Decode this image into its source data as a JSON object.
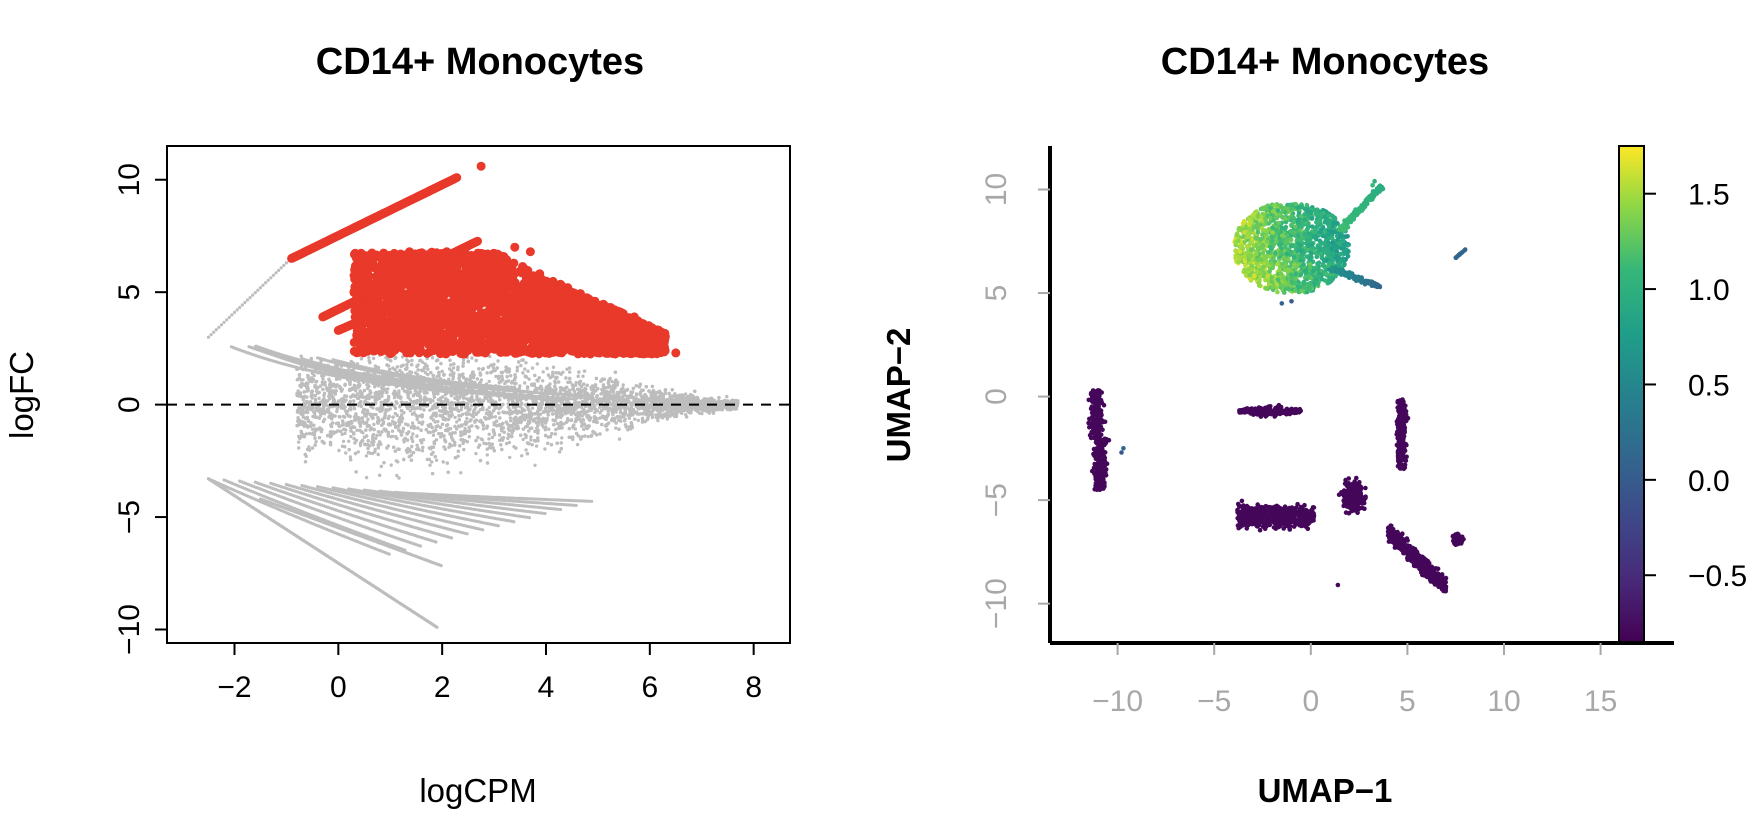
{
  "chart_data": [
    {
      "type": "scatter",
      "subtype": "MA plot",
      "title": "CD14+ Monocytes",
      "xlabel": "logCPM",
      "ylabel": "logFC",
      "xlim": [
        -3.3,
        8.7
      ],
      "ylim": [
        -10.6,
        11.5
      ],
      "xticks": [
        "-2",
        "0",
        "2",
        "4",
        "6",
        "8"
      ],
      "xtick_values": [
        -2,
        0,
        2,
        4,
        6,
        8
      ],
      "yticks": [
        "-10",
        "-5",
        "0",
        "5",
        "10"
      ],
      "ytick_values": [
        -10,
        -5,
        0,
        5,
        10
      ],
      "reference_line": {
        "y": 0,
        "style": "dashed",
        "color": "#000000"
      },
      "series": [
        {
          "color": "#bdbdbd",
          "marker_size": "small",
          "description_points": {
            "low_count_arcs_upper": [
              [
                -2.5,
                3.0
              ],
              [
                -2.0,
                4.8
              ],
              [
                -1.5,
                5.7
              ],
              [
                -1.0,
                6.5
              ]
            ],
            "low_count_arcs_lower": [
              [
                -2.5,
                -3.3
              ],
              [
                -1.0,
                -6.5
              ],
              [
                0.0,
                -7.8
              ],
              [
                1.0,
                -8.8
              ],
              [
                1.6,
                -9.5
              ],
              [
                1.9,
                -9.8
              ]
            ],
            "cloud_extent_x": [
              -2.5,
              7.7
            ],
            "cloud_extent_y": [
              -7.3,
              2.5
            ]
          }
        },
        {
          "color": "#e8392a",
          "marker_size": "large",
          "description_points": {
            "arc_top": [
              [
                -0.9,
                6.5
              ],
              [
                0.5,
                8.0
              ],
              [
                1.5,
                9.2
              ],
              [
                2.3,
                10.1
              ],
              [
                2.75,
                10.6
              ]
            ],
            "arc_mid": [
              [
                -0.3,
                3.9
              ],
              [
                1.0,
                5.5
              ],
              [
                2.0,
                6.6
              ],
              [
                2.7,
                7.3
              ]
            ],
            "cloud_extent_x": [
              0.0,
              6.5
            ],
            "cloud_extent_y": [
              2.2,
              7.0
            ]
          }
        }
      ]
    },
    {
      "type": "scatter",
      "subtype": "UMAP embedding colored by continuous score",
      "title": "CD14+ Monocytes",
      "xlabel": "UMAP−1",
      "ylabel": "UMAP−2",
      "xlim": [
        -13.5,
        18.8
      ],
      "ylim": [
        -11.9,
        12.1
      ],
      "xticks": [
        "−10",
        "−5",
        "0",
        "5",
        "10",
        "15"
      ],
      "xtick_values": [
        -10,
        -5,
        0,
        5,
        10,
        15
      ],
      "yticks": [
        "−10",
        "−5",
        "0",
        "5",
        "10"
      ],
      "ytick_values": [
        -10,
        -5,
        0,
        5,
        10
      ],
      "colorbar": {
        "colormap": "viridis",
        "range": [
          -0.85,
          1.75
        ],
        "ticks": [
          "1.5",
          "1.0",
          "0.5",
          "0.0",
          "−0.5"
        ],
        "tick_values": [
          1.5,
          1.0,
          0.5,
          0.0,
          -0.5
        ]
      },
      "clusters": [
        {
          "center": [
            -0.5,
            7.5
          ],
          "extent": [
            [
              -4.0,
              3.8
            ],
            [
              4.5,
              10.5
            ]
          ],
          "value": 1.3
        },
        {
          "center": [
            -11.0,
            -2.0
          ],
          "extent": [
            [
              -11.8,
              -9.7
            ],
            [
              -4.5,
              0.3
            ]
          ],
          "value": -0.8
        },
        {
          "center": [
            -1.7,
            -0.6
          ],
          "extent": [
            [
              -3.7,
              -0.3
            ],
            [
              -1.5,
              0.1
            ]
          ],
          "value": -0.8
        },
        {
          "center": [
            4.7,
            -1.5
          ],
          "extent": [
            [
              4.2,
              5.3
            ],
            [
              -3.5,
              -0.1
            ]
          ],
          "value": -0.8
        },
        {
          "center": [
            2.0,
            -6.0
          ],
          "extent": [
            [
              -3.8,
              7.0
            ],
            [
              -9.8,
              -4.5
            ]
          ],
          "value": -0.8
        },
        {
          "center": [
            7.7,
            -6.8
          ],
          "extent": [
            [
              6.5,
              8.4
            ],
            [
              -7.8,
              -6.0
            ]
          ],
          "value": -0.8
        },
        {
          "center": [
            7.8,
            6.9
          ],
          "extent": [
            [
              7.5,
              8.0
            ],
            [
              6.7,
              7.1
            ]
          ],
          "value": 0.1
        },
        {
          "center": [
            1.4,
            -9.1
          ],
          "extent": [
            [
              1.3,
              1.5
            ],
            [
              -9.2,
              -9.0
            ]
          ],
          "value": -0.8
        }
      ]
    }
  ]
}
